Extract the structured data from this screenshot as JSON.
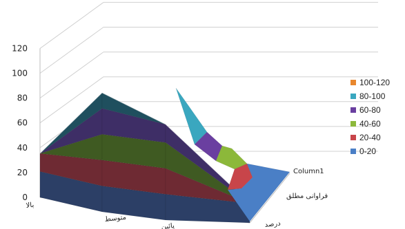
{
  "chart_data": {
    "type": "area",
    "subtype": "3d-surface",
    "y_axis": {
      "min": 0,
      "max": 120,
      "step": 20,
      "ticks": [
        "0",
        "20",
        "40",
        "60",
        "80",
        "100",
        "120"
      ]
    },
    "categories": [
      "بالا",
      "متوسط",
      "پائین",
      "درصد"
    ],
    "series": [
      {
        "name": "فراوانی مطلق",
        "values": [
          34,
          92,
          74,
          15
        ]
      },
      {
        "name": "Column1",
        "values": [
          0,
          0,
          0,
          0
        ]
      }
    ],
    "legend": {
      "position": "right",
      "entries": [
        {
          "label": "100-120",
          "color": "#e8872e"
        },
        {
          "label": "80-100",
          "color": "#3aa7bf"
        },
        {
          "label": "60-80",
          "color": "#6a3fa0"
        },
        {
          "label": "40-60",
          "color": "#8cb83a"
        },
        {
          "label": "20-40",
          "color": "#c8454a"
        },
        {
          "label": "0-20",
          "color": "#4a7fc6"
        }
      ]
    },
    "band_colors": {
      "0-20": "#2c3f66",
      "20-40": "#6e2a33",
      "40-60": "#3f5a22",
      "60-80": "#3e2e66",
      "80-100": "#1f4f5e",
      "100-120": "#e8872e"
    },
    "grid": true
  }
}
